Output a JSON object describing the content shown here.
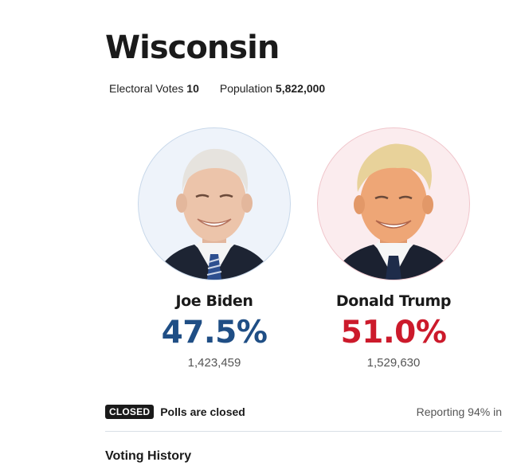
{
  "state": {
    "name": "Wisconsin",
    "electoral_votes_label": "Electoral Votes",
    "electoral_votes": "10",
    "population_label": "Population",
    "population": "5,822,000"
  },
  "candidates": [
    {
      "name": "Joe Biden",
      "percent": "47.5%",
      "votes": "1,423,459",
      "color": "#1f4e85",
      "tie_color": "#2d4f8f"
    },
    {
      "name": "Donald Trump",
      "percent": "51.0%",
      "votes": "1,529,630",
      "color": "#cc1a2b",
      "tie_color": "#1e2c4a"
    }
  ],
  "status": {
    "badge": "CLOSED",
    "text": "Polls are closed",
    "reporting": "Reporting 94% in"
  },
  "section": {
    "heading": "Voting History"
  }
}
